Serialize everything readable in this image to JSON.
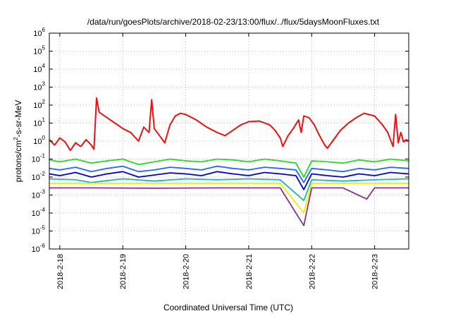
{
  "chart_data": {
    "type": "line",
    "title": "/data/run/goesPlots/archive/2018-02-23/13:00/flux/../flux/5daysMoonFluxes.txt",
    "xlabel": "Coordinated Universal Time (UTC)",
    "ylabel_parts": [
      "protons/cm",
      "2",
      "-s-sr-MeV"
    ],
    "x_range": [
      "2018-02-17T20:00",
      "2018-02-23T13:00"
    ],
    "ylim": [
      1e-06,
      1000000.0
    ],
    "y_scale": "log",
    "grid": true,
    "legend": "none",
    "x_ticks": [
      {
        "x": "2018-02-18T00:00",
        "label": "2018-2-18"
      },
      {
        "x": "2018-02-19T00:00",
        "label": "2018-2-19"
      },
      {
        "x": "2018-02-20T00:00",
        "label": "2018-2-20"
      },
      {
        "x": "2018-02-21T00:00",
        "label": "2018-2-21"
      },
      {
        "x": "2018-02-22T00:00",
        "label": "2018-2-22"
      },
      {
        "x": "2018-02-23T00:00",
        "label": "2018-2-23"
      }
    ],
    "y_ticks": [
      {
        "mant": "10",
        "exp": "-6",
        "value": 1e-06
      },
      {
        "mant": "10",
        "exp": "-5",
        "value": 1e-05
      },
      {
        "mant": "10",
        "exp": "-4",
        "value": 0.0001
      },
      {
        "mant": "10",
        "exp": "-3",
        "value": 0.001
      },
      {
        "mant": "10",
        "exp": "-2",
        "value": 0.01
      },
      {
        "mant": "10",
        "exp": "-1",
        "value": 0.1
      },
      {
        "mant": "10",
        "exp": "0",
        "value": 1
      },
      {
        "mant": "10",
        "exp": "1",
        "value": 10
      },
      {
        "mant": "10",
        "exp": "2",
        "value": 100
      },
      {
        "mant": "10",
        "exp": "3",
        "value": 1000
      },
      {
        "mant": "10",
        "exp": "4",
        "value": 10000
      },
      {
        "mant": "10",
        "exp": "5",
        "value": 100000
      },
      {
        "mant": "10",
        "exp": "6",
        "value": 1000000
      }
    ],
    "series": [
      {
        "color": "#ee1111",
        "points": [
          [
            "2018-02-17T20:00",
            1.2
          ],
          [
            "2018-02-17T22:00",
            0.6
          ],
          [
            "2018-02-18T00:00",
            1.5
          ],
          [
            "2018-02-18T02:00",
            0.9
          ],
          [
            "2018-02-18T04:00",
            0.3
          ],
          [
            "2018-02-18T06:00",
            0.8
          ],
          [
            "2018-02-18T08:00",
            0.5
          ],
          [
            "2018-02-18T10:00",
            1.2
          ],
          [
            "2018-02-18T12:00",
            0.6
          ],
          [
            "2018-02-18T13:00",
            0.35
          ],
          [
            "2018-02-18T14:00",
            250
          ],
          [
            "2018-02-18T15:00",
            40
          ],
          [
            "2018-02-18T18:00",
            20
          ],
          [
            "2018-02-18T22:00",
            8
          ],
          [
            "2018-02-19T00:00",
            5
          ],
          [
            "2018-02-19T03:00",
            3
          ],
          [
            "2018-02-19T06:00",
            1
          ],
          [
            "2018-02-19T08:00",
            6
          ],
          [
            "2018-02-19T10:00",
            3
          ],
          [
            "2018-02-19T11:00",
            200
          ],
          [
            "2018-02-19T12:00",
            5
          ],
          [
            "2018-02-19T14:00",
            2
          ],
          [
            "2018-02-19T16:00",
            0.8
          ],
          [
            "2018-02-19T18:00",
            8
          ],
          [
            "2018-02-19T20:00",
            25
          ],
          [
            "2018-02-19T22:00",
            35
          ],
          [
            "2018-02-20T00:00",
            30
          ],
          [
            "2018-02-20T04:00",
            15
          ],
          [
            "2018-02-20T08:00",
            6
          ],
          [
            "2018-02-20T12:00",
            3
          ],
          [
            "2018-02-20T15:00",
            2
          ],
          [
            "2018-02-20T18:00",
            4
          ],
          [
            "2018-02-20T21:00",
            8
          ],
          [
            "2018-02-21T00:00",
            12
          ],
          [
            "2018-02-21T04:00",
            13
          ],
          [
            "2018-02-21T08:00",
            8
          ],
          [
            "2018-02-21T10:00",
            4
          ],
          [
            "2018-02-21T12:00",
            1.5
          ],
          [
            "2018-02-21T13:00",
            0.5
          ],
          [
            "2018-02-21T15:00",
            2
          ],
          [
            "2018-02-21T17:00",
            5
          ],
          [
            "2018-02-21T19:00",
            15
          ],
          [
            "2018-02-21T20:00",
            3
          ],
          [
            "2018-02-21T21:00",
            25
          ],
          [
            "2018-02-21T23:00",
            20
          ],
          [
            "2018-02-22T01:00",
            8
          ],
          [
            "2018-02-22T03:00",
            2
          ],
          [
            "2018-02-22T05:00",
            0.6
          ],
          [
            "2018-02-22T06:00",
            0.4
          ],
          [
            "2018-02-22T08:00",
            1
          ],
          [
            "2018-02-22T11:00",
            4
          ],
          [
            "2018-02-22T14:00",
            10
          ],
          [
            "2018-02-22T17:00",
            20
          ],
          [
            "2018-02-22T20:00",
            35
          ],
          [
            "2018-02-23T00:00",
            25
          ],
          [
            "2018-02-23T03:00",
            8
          ],
          [
            "2018-02-23T05:00",
            3
          ],
          [
            "2018-02-23T07:00",
            0.5
          ],
          [
            "2018-02-23T08:00",
            30
          ],
          [
            "2018-02-23T09:00",
            0.8
          ],
          [
            "2018-02-23T10:00",
            3
          ],
          [
            "2018-02-23T11:00",
            0.9
          ],
          [
            "2018-02-23T12:00",
            1.2
          ],
          [
            "2018-02-23T13:00",
            1.0
          ]
        ]
      },
      {
        "color": "#22dd22",
        "points": [
          [
            "2018-02-17T20:00",
            0.09
          ],
          [
            "2018-02-18T00:00",
            0.07
          ],
          [
            "2018-02-18T06:00",
            0.1
          ],
          [
            "2018-02-18T12:00",
            0.06
          ],
          [
            "2018-02-18T18:00",
            0.08
          ],
          [
            "2018-02-19T00:00",
            0.1
          ],
          [
            "2018-02-19T06:00",
            0.05
          ],
          [
            "2018-02-19T12:00",
            0.07
          ],
          [
            "2018-02-19T18:00",
            0.1
          ],
          [
            "2018-02-20T00:00",
            0.08
          ],
          [
            "2018-02-20T06:00",
            0.07
          ],
          [
            "2018-02-20T12:00",
            0.1
          ],
          [
            "2018-02-20T18:00",
            0.09
          ],
          [
            "2018-02-21T00:00",
            0.07
          ],
          [
            "2018-02-21T06:00",
            0.1
          ],
          [
            "2018-02-21T12:00",
            0.08
          ],
          [
            "2018-02-21T18:00",
            0.06
          ],
          [
            "2018-02-21T21:00",
            0.01
          ],
          [
            "2018-02-22T00:00",
            0.08
          ],
          [
            "2018-02-22T06:00",
            0.07
          ],
          [
            "2018-02-22T12:00",
            0.06
          ],
          [
            "2018-02-22T18:00",
            0.09
          ],
          [
            "2018-02-23T00:00",
            0.07
          ],
          [
            "2018-02-23T06:00",
            0.1
          ],
          [
            "2018-02-23T13:00",
            0.08
          ]
        ]
      },
      {
        "color": "#2266ff",
        "points": [
          [
            "2018-02-17T20:00",
            0.03
          ],
          [
            "2018-02-18T00:00",
            0.025
          ],
          [
            "2018-02-18T06:00",
            0.035
          ],
          [
            "2018-02-18T12:00",
            0.02
          ],
          [
            "2018-02-18T18:00",
            0.03
          ],
          [
            "2018-02-19T00:00",
            0.04
          ],
          [
            "2018-02-19T06:00",
            0.02
          ],
          [
            "2018-02-19T12:00",
            0.025
          ],
          [
            "2018-02-19T18:00",
            0.035
          ],
          [
            "2018-02-20T00:00",
            0.03
          ],
          [
            "2018-02-20T06:00",
            0.025
          ],
          [
            "2018-02-20T12:00",
            0.04
          ],
          [
            "2018-02-20T18:00",
            0.03
          ],
          [
            "2018-02-21T00:00",
            0.025
          ],
          [
            "2018-02-21T06:00",
            0.035
          ],
          [
            "2018-02-21T12:00",
            0.03
          ],
          [
            "2018-02-21T18:00",
            0.025
          ],
          [
            "2018-02-21T21:00",
            0.005
          ],
          [
            "2018-02-22T00:00",
            0.03
          ],
          [
            "2018-02-22T06:00",
            0.025
          ],
          [
            "2018-02-22T12:00",
            0.02
          ],
          [
            "2018-02-22T18:00",
            0.03
          ],
          [
            "2018-02-23T00:00",
            0.025
          ],
          [
            "2018-02-23T06:00",
            0.035
          ],
          [
            "2018-02-23T13:00",
            0.03
          ]
        ]
      },
      {
        "color": "#0000cc",
        "points": [
          [
            "2018-02-17T20:00",
            0.015
          ],
          [
            "2018-02-18T00:00",
            0.012
          ],
          [
            "2018-02-18T06:00",
            0.018
          ],
          [
            "2018-02-18T12:00",
            0.01
          ],
          [
            "2018-02-18T18:00",
            0.015
          ],
          [
            "2018-02-19T00:00",
            0.02
          ],
          [
            "2018-02-19T06:00",
            0.01
          ],
          [
            "2018-02-19T12:00",
            0.013
          ],
          [
            "2018-02-19T18:00",
            0.017
          ],
          [
            "2018-02-20T00:00",
            0.015
          ],
          [
            "2018-02-20T06:00",
            0.012
          ],
          [
            "2018-02-20T12:00",
            0.02
          ],
          [
            "2018-02-20T18:00",
            0.015
          ],
          [
            "2018-02-21T00:00",
            0.012
          ],
          [
            "2018-02-21T06:00",
            0.018
          ],
          [
            "2018-02-21T12:00",
            0.015
          ],
          [
            "2018-02-21T18:00",
            0.012
          ],
          [
            "2018-02-21T21:00",
            0.002
          ],
          [
            "2018-02-22T00:00",
            0.015
          ],
          [
            "2018-02-22T06:00",
            0.012
          ],
          [
            "2018-02-22T12:00",
            0.01
          ],
          [
            "2018-02-22T18:00",
            0.015
          ],
          [
            "2018-02-23T00:00",
            0.012
          ],
          [
            "2018-02-23T06:00",
            0.018
          ],
          [
            "2018-02-23T13:00",
            0.015
          ]
        ]
      },
      {
        "color": "#11bbbb",
        "points": [
          [
            "2018-02-17T20:00",
            0.008
          ],
          [
            "2018-02-18T06:00",
            0.007
          ],
          [
            "2018-02-18T12:00",
            0.005
          ],
          [
            "2018-02-19T00:00",
            0.008
          ],
          [
            "2018-02-19T12:00",
            0.006
          ],
          [
            "2018-02-20T00:00",
            0.008
          ],
          [
            "2018-02-20T12:00",
            0.007
          ],
          [
            "2018-02-21T00:00",
            0.008
          ],
          [
            "2018-02-21T12:00",
            0.007
          ],
          [
            "2018-02-21T21:00",
            0.0005
          ],
          [
            "2018-02-22T00:00",
            0.007
          ],
          [
            "2018-02-22T12:00",
            0.006
          ],
          [
            "2018-02-23T00:00",
            0.007
          ],
          [
            "2018-02-23T13:00",
            0.008
          ]
        ]
      },
      {
        "color": "#eeee00",
        "points": [
          [
            "2018-02-17T20:00",
            0.0045
          ],
          [
            "2018-02-18T12:00",
            0.0045
          ],
          [
            "2018-02-19T12:00",
            0.0045
          ],
          [
            "2018-02-20T12:00",
            0.0045
          ],
          [
            "2018-02-21T12:00",
            0.0045
          ],
          [
            "2018-02-21T21:00",
            0.0001
          ],
          [
            "2018-02-22T00:00",
            0.0045
          ],
          [
            "2018-02-22T12:00",
            0.0045
          ],
          [
            "2018-02-23T13:00",
            0.0045
          ]
        ]
      },
      {
        "color": "#883388",
        "points": [
          [
            "2018-02-17T20:00",
            0.0025
          ],
          [
            "2018-02-18T12:00",
            0.0025
          ],
          [
            "2018-02-19T12:00",
            0.0024
          ],
          [
            "2018-02-20T12:00",
            0.0025
          ],
          [
            "2018-02-21T12:00",
            0.0025
          ],
          [
            "2018-02-21T21:00",
            2e-05
          ],
          [
            "2018-02-22T00:00",
            0.0025
          ],
          [
            "2018-02-22T12:00",
            0.0025
          ],
          [
            "2018-02-22T21:00",
            0.0006
          ],
          [
            "2018-02-23T00:00",
            0.0025
          ],
          [
            "2018-02-23T13:00",
            0.0025
          ]
        ]
      }
    ]
  }
}
